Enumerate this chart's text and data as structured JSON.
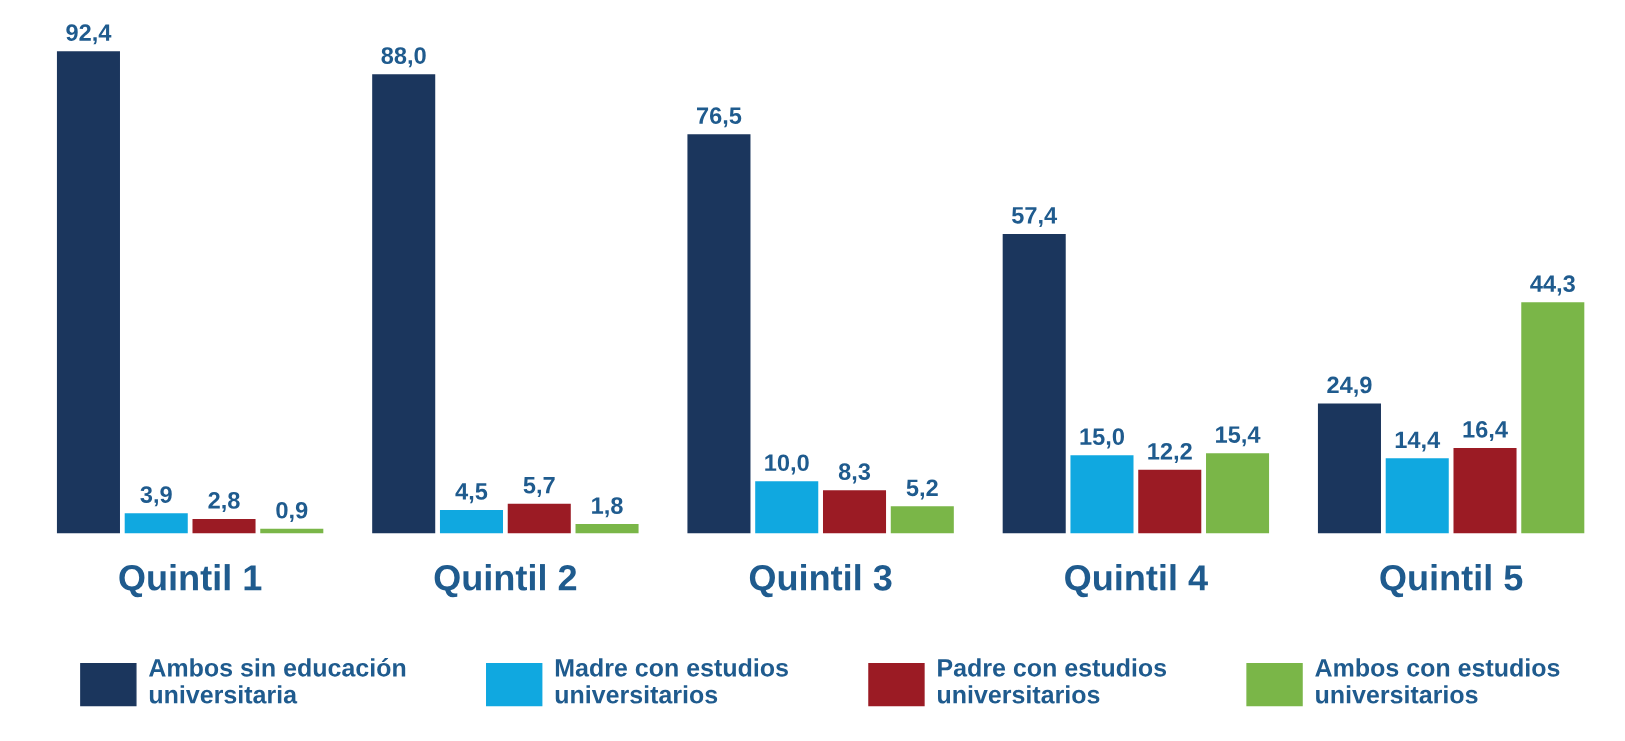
{
  "chart_data": {
    "type": "bar",
    "categories": [
      "Quintil 1",
      "Quintil 2",
      "Quintil 3",
      "Quintil 4",
      "Quintil 5"
    ],
    "series": [
      {
        "name": "Ambos sin educación\nuniversitaria",
        "color": "#1b365d",
        "values": [
          92.4,
          88.0,
          76.5,
          57.4,
          24.9
        ],
        "value_labels": [
          "92,4",
          "88,0",
          "76,5",
          "57,4",
          "24,9"
        ]
      },
      {
        "name": "Madre con estudios\nuniversitarios",
        "color": "#10a8e0",
        "values": [
          3.9,
          4.5,
          10.0,
          15.0,
          14.4
        ],
        "value_labels": [
          "3,9",
          "4,5",
          "10,0",
          "15,0",
          "14,4"
        ]
      },
      {
        "name": "Padre con estudios\nuniversitarios",
        "color": "#9b1b24",
        "values": [
          2.8,
          5.7,
          8.3,
          12.2,
          16.4
        ],
        "value_labels": [
          "2,8",
          "5,7",
          "8,3",
          "12,2",
          "16,4"
        ]
      },
      {
        "name": "Ambos con estudios\nuniversitarios",
        "color": "#7ab648",
        "values": [
          0.9,
          1.8,
          5.2,
          15.4,
          44.3
        ],
        "value_labels": [
          "0,9",
          "1,8",
          "5,2",
          "15,4",
          "44,3"
        ]
      }
    ],
    "legend": "bottom",
    "grid": false
  }
}
